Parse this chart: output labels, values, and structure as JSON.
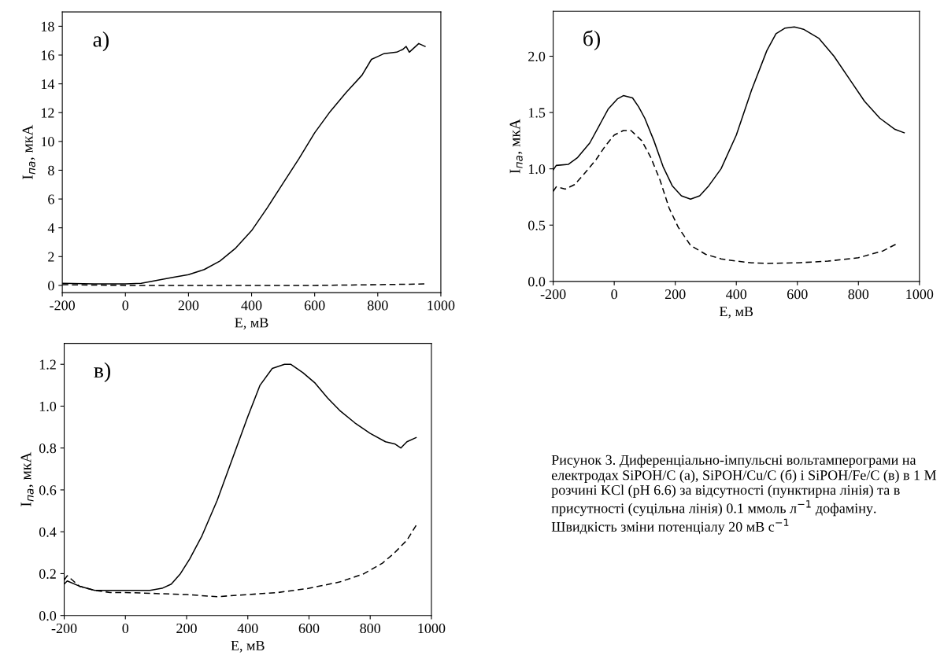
{
  "chart_data": [
    {
      "type": "line",
      "annotations": [
        "а)"
      ],
      "xlabel": "E, мВ",
      "ylabel": "I$_{па}$, мкА",
      "xlim": [
        -200,
        1000
      ],
      "xticks": [
        -200,
        0,
        200,
        400,
        600,
        800,
        1000
      ],
      "ylim": [
        -0.5,
        19
      ],
      "yticks": [
        0,
        2,
        4,
        6,
        8,
        10,
        12,
        14,
        16,
        18
      ],
      "series": [
        {
          "color": "#000000",
          "line_style": "solid",
          "x": [
            -200,
            -100,
            0,
            50,
            100,
            150,
            200,
            250,
            300,
            350,
            400,
            450,
            500,
            550,
            600,
            650,
            700,
            750,
            780,
            800,
            820,
            860,
            880,
            890,
            900,
            930,
            950
          ],
          "values": [
            0.15,
            0.1,
            0.1,
            0.15,
            0.35,
            0.55,
            0.75,
            1.1,
            1.7,
            2.6,
            3.8,
            5.4,
            7.1,
            8.8,
            10.6,
            12.1,
            13.4,
            14.6,
            15.7,
            15.9,
            16.1,
            16.2,
            16.4,
            16.6,
            16.2,
            16.8,
            16.6
          ]
        },
        {
          "color": "#000000",
          "line_style": "dashed",
          "x": [
            -200,
            0,
            600,
            800,
            950
          ],
          "values": [
            0.05,
            0.0,
            0.0,
            0.05,
            0.1
          ]
        }
      ]
    },
    {
      "type": "line",
      "annotations": [
        "б)"
      ],
      "xlabel": "E, мВ",
      "ylabel": "I$_{па}$, мкА",
      "xlim": [
        -200,
        1000
      ],
      "xticks": [
        -200,
        0,
        200,
        400,
        600,
        800,
        1000
      ],
      "ylim": [
        0,
        2.4
      ],
      "yticks": [
        {
          "value": 0,
          "label": "0.0"
        },
        0.5,
        {
          "value": 1,
          "label": "1.0"
        },
        1.5,
        {
          "value": 2,
          "label": "2.0"
        }
      ],
      "series": [
        {
          "color": "#000000",
          "line_style": "solid",
          "x": [
            -200,
            -190,
            -150,
            -120,
            -80,
            -50,
            -20,
            10,
            30,
            60,
            80,
            100,
            130,
            160,
            190,
            220,
            250,
            280,
            310,
            350,
            400,
            450,
            500,
            530,
            560,
            590,
            620,
            670,
            720,
            770,
            820,
            870,
            920,
            950
          ],
          "values": [
            0.99,
            1.03,
            1.04,
            1.1,
            1.23,
            1.38,
            1.53,
            1.62,
            1.65,
            1.63,
            1.55,
            1.45,
            1.25,
            1.02,
            0.85,
            0.76,
            0.73,
            0.76,
            0.85,
            1.0,
            1.3,
            1.7,
            2.05,
            2.2,
            2.25,
            2.26,
            2.24,
            2.16,
            2.0,
            1.8,
            1.6,
            1.45,
            1.35,
            1.32
          ]
        },
        {
          "color": "#000000",
          "line_style": "dashed",
          "x": [
            -200,
            -190,
            -160,
            -130,
            -100,
            -60,
            -30,
            0,
            30,
            55,
            90,
            120,
            150,
            180,
            210,
            250,
            300,
            350,
            400,
            450,
            500,
            600,
            700,
            800,
            880,
            930
          ],
          "values": [
            0.8,
            0.84,
            0.82,
            0.86,
            0.95,
            1.08,
            1.2,
            1.3,
            1.34,
            1.34,
            1.25,
            1.1,
            0.9,
            0.65,
            0.48,
            0.32,
            0.24,
            0.2,
            0.18,
            0.165,
            0.16,
            0.165,
            0.18,
            0.21,
            0.27,
            0.34
          ]
        }
      ]
    },
    {
      "type": "line",
      "annotations": [
        "в)",
        "Рисунок 3. Диференціально-імпульсні вольтамперограми на електродах SiPOH/C (а), SiPOH/Cu/C (б) і SiPOH/Fe/C (в) в 1 М розчині KCl (pH 6.6) за відсутності (пунктирна лінія) та в присутності (суцільна лінія) 0.1 ммоль л$^{−1}$ дофаміну. Швидкість зміни потенціалу 20 мВ с$^{−1}$"
      ],
      "xlabel": "E, мВ",
      "ylabel": "I$_{па}$, мкА",
      "xlim": [
        -200,
        1000
      ],
      "xticks": [
        -200,
        0,
        200,
        400,
        600,
        800,
        1000
      ],
      "ylim": [
        0,
        1.3
      ],
      "yticks": [
        {
          "value": 0,
          "label": "0.0"
        },
        0.2,
        0.4,
        0.6,
        0.8,
        {
          "value": 1,
          "label": "1.0"
        },
        1.2
      ],
      "series": [
        {
          "color": "#000000",
          "line_style": "solid",
          "x": [
            -200,
            -190,
            -150,
            -100,
            -50,
            0,
            80,
            120,
            150,
            180,
            210,
            250,
            300,
            350,
            400,
            440,
            480,
            520,
            540,
            580,
            620,
            660,
            700,
            750,
            800,
            850,
            880,
            900,
            920,
            950
          ],
          "values": [
            0.15,
            0.165,
            0.14,
            0.12,
            0.12,
            0.12,
            0.12,
            0.13,
            0.15,
            0.2,
            0.27,
            0.38,
            0.55,
            0.75,
            0.95,
            1.1,
            1.18,
            1.2,
            1.2,
            1.16,
            1.11,
            1.04,
            0.98,
            0.92,
            0.87,
            0.83,
            0.82,
            0.8,
            0.83,
            0.85
          ]
        },
        {
          "color": "#000000",
          "line_style": "dashed",
          "x": [
            -200,
            -190,
            -150,
            -100,
            -50,
            0,
            100,
            200,
            300,
            400,
            500,
            600,
            700,
            780,
            840,
            880,
            920,
            950
          ],
          "values": [
            0.17,
            0.19,
            0.14,
            0.12,
            0.11,
            0.11,
            0.105,
            0.1,
            0.09,
            0.1,
            0.11,
            0.13,
            0.16,
            0.2,
            0.25,
            0.3,
            0.36,
            0.43
          ]
        }
      ]
    }
  ]
}
